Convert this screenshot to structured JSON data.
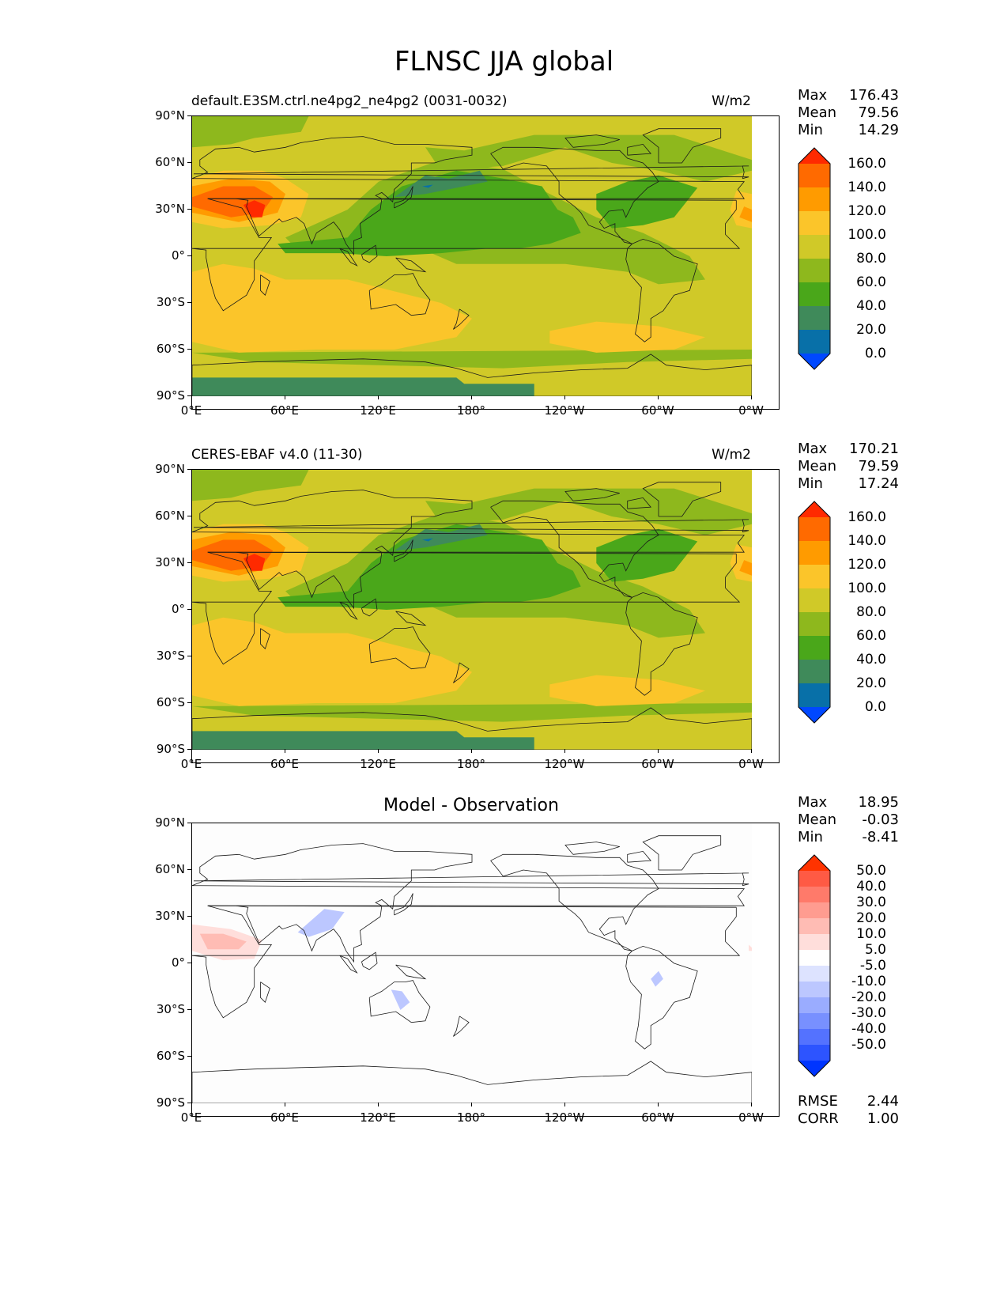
{
  "figure_title": "FLNSC JJA global",
  "panels": [
    {
      "left_title": "default.E3SM.ctrl.ne4pg2_ne4pg2 (0031-0032)",
      "right_title": "W/m2",
      "center_title": "",
      "stats": {
        "max_label": "Max",
        "max": "176.43",
        "mean_label": "Mean",
        "mean": "79.56",
        "min_label": "Min",
        "min": "14.29"
      },
      "colorbar_ticks": [
        "160.0",
        "140.0",
        "120.0",
        "100.0",
        "80.0",
        "60.0",
        "40.0",
        "20.0",
        "0.0"
      ]
    },
    {
      "left_title": "CERES-EBAF v4.0 (11-30)",
      "right_title": "W/m2",
      "center_title": "",
      "stats": {
        "max_label": "Max",
        "max": "170.21",
        "mean_label": "Mean",
        "mean": "79.59",
        "min_label": "Min",
        "min": "17.24"
      },
      "colorbar_ticks": [
        "160.0",
        "140.0",
        "120.0",
        "100.0",
        "80.0",
        "60.0",
        "40.0",
        "20.0",
        "0.0"
      ]
    },
    {
      "left_title": "",
      "right_title": "",
      "center_title": "Model - Observation",
      "stats": {
        "max_label": "Max",
        "max": "18.95",
        "mean_label": "Mean",
        "mean": "-0.03",
        "min_label": "Min",
        "min": "-8.41"
      },
      "colorbar_ticks": [
        "50.0",
        "40.0",
        "30.0",
        "20.0",
        "10.0",
        "5.0",
        "-5.0",
        "-10.0",
        "-20.0",
        "-30.0",
        "-40.0",
        "-50.0"
      ],
      "footer": {
        "rmse_label": "RMSE",
        "rmse": "2.44",
        "corr_label": "CORR",
        "corr": "1.00"
      }
    }
  ],
  "lat_ticks": [
    "90°N",
    "60°N",
    "30°N",
    "0°",
    "30°S",
    "60°S",
    "90°S"
  ],
  "lon_ticks": [
    "0°E",
    "60°E",
    "120°E",
    "180°",
    "120°W",
    "60°W",
    "0°W"
  ],
  "colors": {
    "abs_scale": [
      "#ff2a00",
      "#ff6a00",
      "#ff9b00",
      "#fbc52a",
      "#d0c928",
      "#8eb81d",
      "#4aa71a",
      "#3f8a5a",
      "#0870a8",
      "#0048ff"
    ],
    "diff_scale": [
      "#ff3300",
      "#ff5a44",
      "#ff7a6a",
      "#ff9c90",
      "#ffbcb4",
      "#ffdedb",
      "#ffffff",
      "#dde3ff",
      "#bcc7ff",
      "#9aacff",
      "#7890ff",
      "#5472ff",
      "#2d54ff",
      "#0035ff"
    ]
  }
}
